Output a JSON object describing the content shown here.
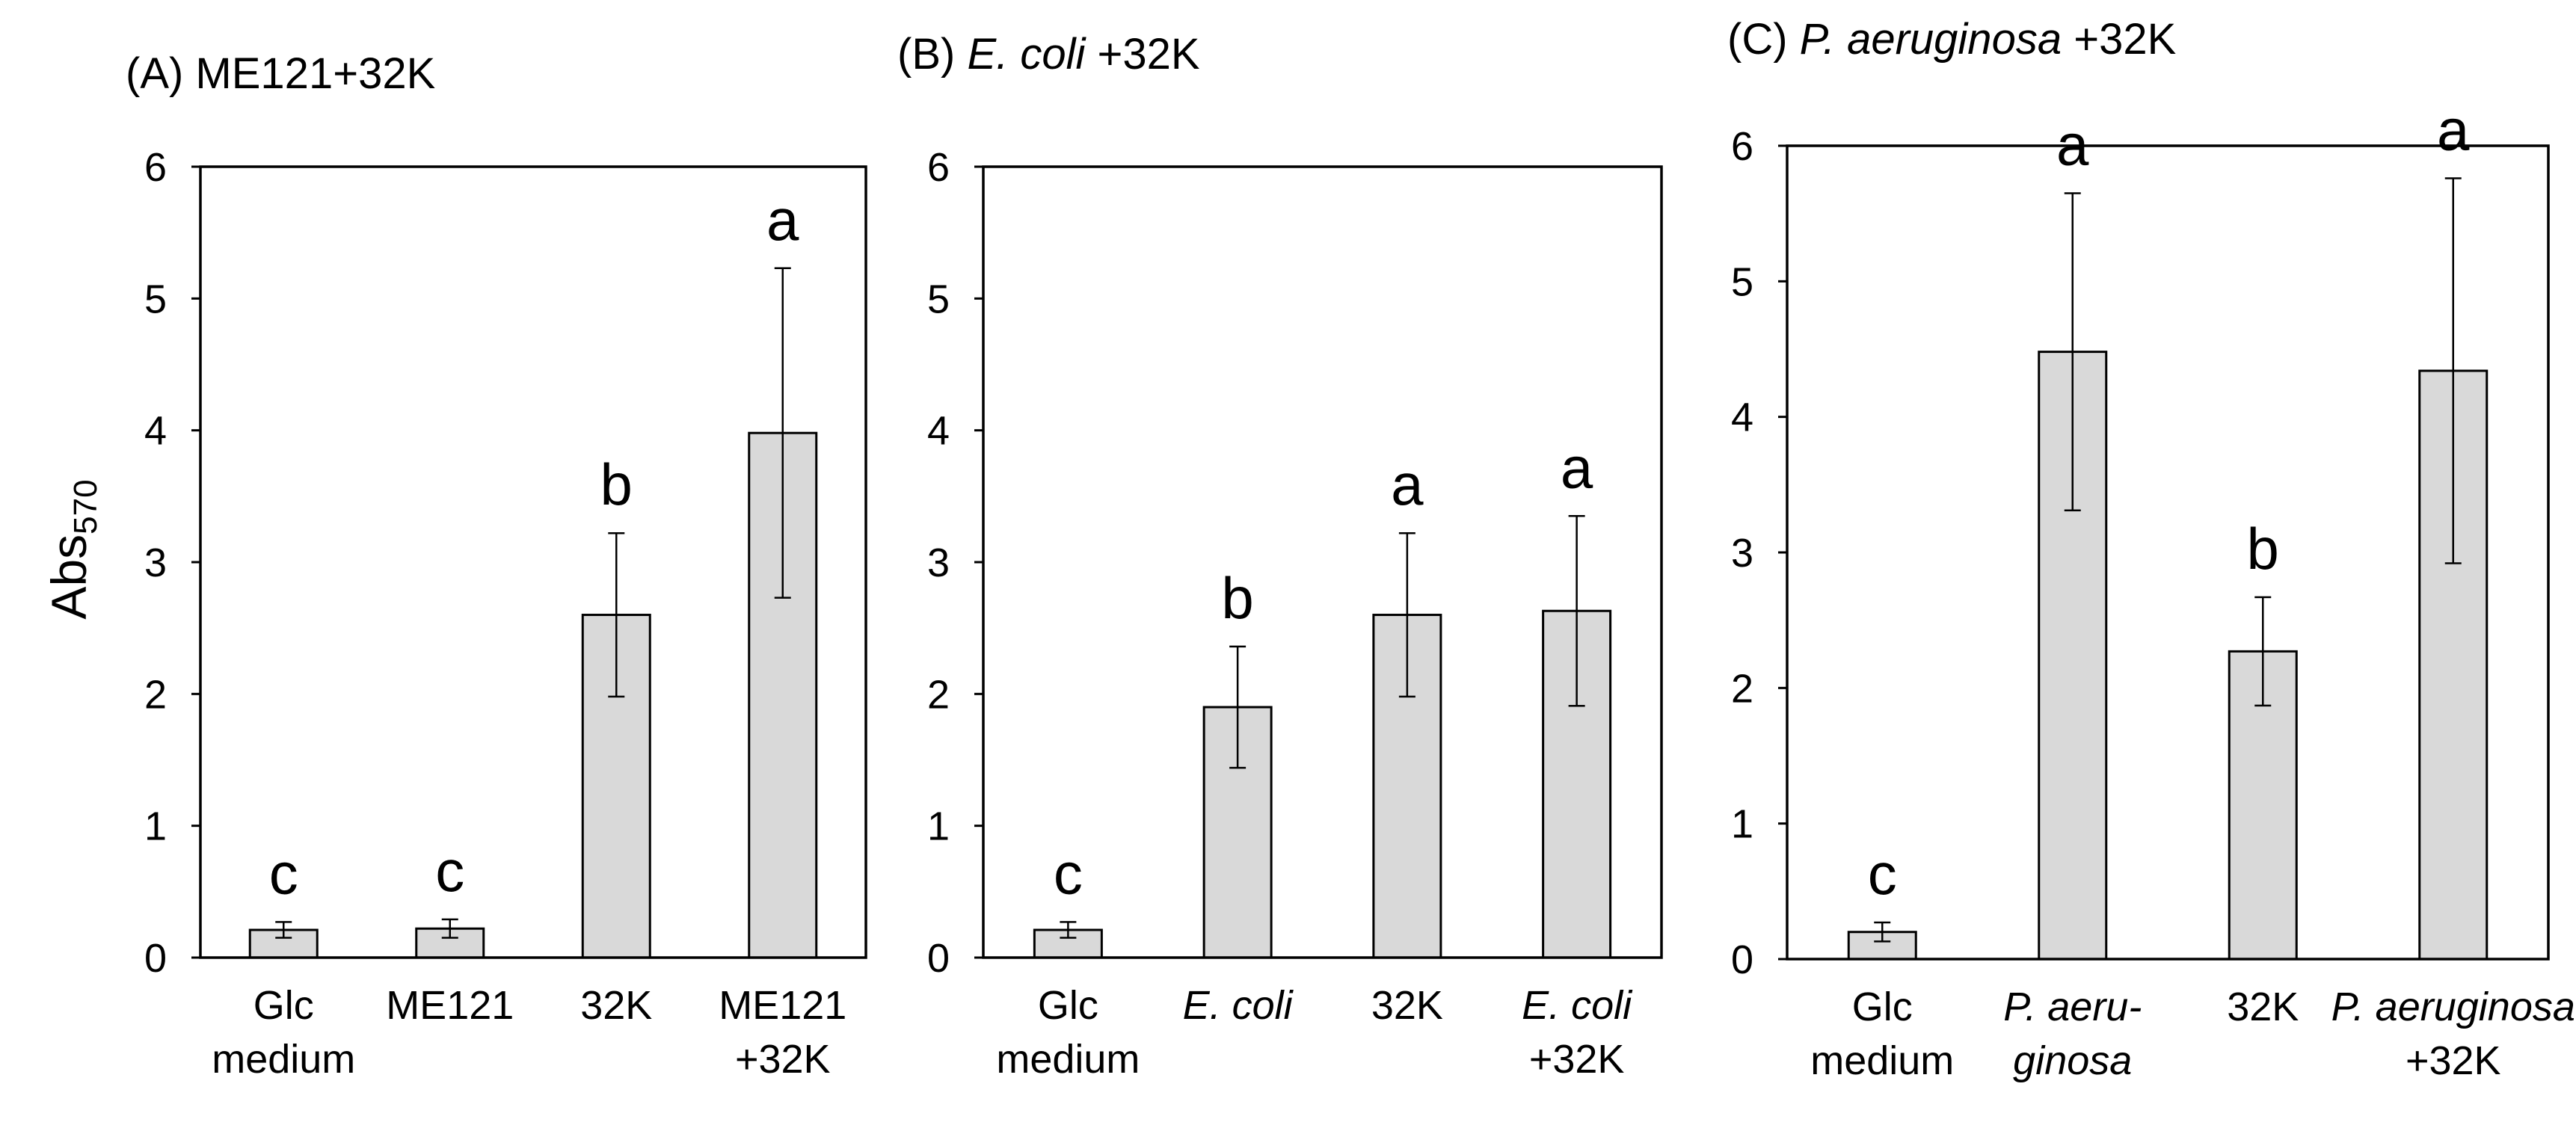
{
  "figure": {
    "ylabel": {
      "main": "Abs",
      "subscript": "570"
    }
  },
  "chart_data": [
    {
      "type": "bar",
      "title": [
        {
          "text": "(A) ME121+32K",
          "italic": false
        }
      ],
      "ylabel": "Abs570",
      "ylim": [
        0,
        6
      ],
      "yticks": [
        0,
        1,
        2,
        3,
        4,
        5,
        6
      ],
      "categories": [
        [
          {
            "text": "Glc",
            "italic": false
          },
          {
            "text": "medium",
            "italic": false
          }
        ],
        [
          {
            "text": "ME121",
            "italic": false
          }
        ],
        [
          {
            "text": "32K",
            "italic": false
          }
        ],
        [
          {
            "text": "ME121",
            "italic": false
          },
          {
            "text": "+32K",
            "italic": false
          }
        ]
      ],
      "values": [
        0.21,
        0.22,
        2.6,
        3.98
      ],
      "errors": [
        0.06,
        0.07,
        0.62,
        1.25
      ],
      "letters": [
        "c",
        "c",
        "b",
        "a"
      ],
      "bar_color": "#d9d9d9",
      "edge_color": "#000000"
    },
    {
      "type": "bar",
      "title": [
        {
          "text": "(B) ",
          "italic": false
        },
        {
          "text": "E. coli",
          "italic": true
        },
        {
          "text": " +32K",
          "italic": false
        }
      ],
      "ylabel": "",
      "ylim": [
        0,
        6
      ],
      "yticks": [
        0,
        1,
        2,
        3,
        4,
        5,
        6
      ],
      "categories": [
        [
          {
            "text": "Glc",
            "italic": false
          },
          {
            "text": "medium",
            "italic": false
          }
        ],
        [
          {
            "text": "E. coli",
            "italic": true
          }
        ],
        [
          {
            "text": "32K",
            "italic": false
          }
        ],
        [
          {
            "text": "E. coli",
            "italic": true
          },
          {
            "text": "+32K",
            "italic": false
          }
        ]
      ],
      "values": [
        0.21,
        1.9,
        2.6,
        2.63
      ],
      "errors": [
        0.06,
        0.46,
        0.62,
        0.72
      ],
      "letters": [
        "c",
        "b",
        "a",
        "a"
      ],
      "bar_color": "#d9d9d9",
      "edge_color": "#000000"
    },
    {
      "type": "bar",
      "title": [
        {
          "text": "(C) ",
          "italic": false
        },
        {
          "text": "P. aeruginosa",
          "italic": true
        },
        {
          "text": " +32K",
          "italic": false
        }
      ],
      "ylabel": "",
      "ylim": [
        0,
        6
      ],
      "yticks": [
        0,
        1,
        2,
        3,
        4,
        5,
        6
      ],
      "categories": [
        [
          {
            "text": "Glc",
            "italic": false
          },
          {
            "text": "medium",
            "italic": false
          }
        ],
        [
          {
            "text": "P. aeru-",
            "italic": true
          },
          {
            "text": "ginosa",
            "italic": true
          }
        ],
        [
          {
            "text": "32K",
            "italic": false
          }
        ],
        [
          {
            "text": "P. aeruginosa",
            "italic": true
          },
          {
            "text": "+32K",
            "italic": false
          }
        ]
      ],
      "values": [
        0.2,
        4.48,
        2.27,
        4.34
      ],
      "errors": [
        0.07,
        1.17,
        0.4,
        1.42
      ],
      "letters": [
        "c",
        "a",
        "b",
        "a"
      ],
      "bar_color": "#d9d9d9",
      "edge_color": "#000000"
    }
  ]
}
